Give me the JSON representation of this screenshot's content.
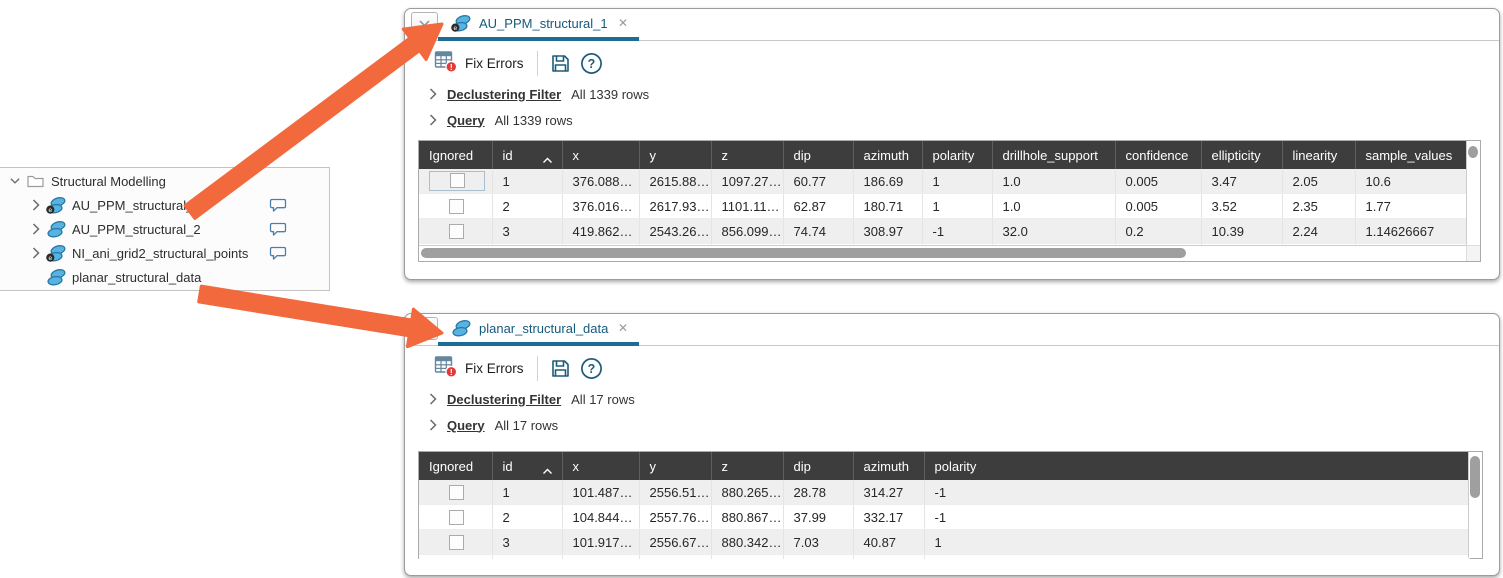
{
  "colors": {
    "tab_accent": "#1B6D93",
    "arrow_orange": "#F1693C",
    "table_header_bg": "#3D3D3D",
    "error_badge_red": "#E23B3B",
    "icon_blue": "#58B3E2",
    "icon_blue_stroke": "#2878A5"
  },
  "tree": {
    "root": {
      "label": "Structural Modelling"
    },
    "items": [
      {
        "label": "AU_PPM_structural_1",
        "chevron": true,
        "badge": true,
        "comment": true
      },
      {
        "label": "AU_PPM_structural_2",
        "chevron": true,
        "badge": false,
        "comment": true
      },
      {
        "label": "NI_ani_grid2_structural_points",
        "chevron": true,
        "badge": true,
        "comment": true
      },
      {
        "label": "planar_structural_data",
        "chevron": false,
        "badge": false,
        "comment": false
      }
    ]
  },
  "panels": [
    {
      "tab": {
        "title": "AU_PPM_structural_1",
        "badge": true,
        "close_glyph": "✕"
      },
      "toolbar": {
        "fix_errors_label": "Fix Errors"
      },
      "sections": [
        {
          "label": "Declustering Filter",
          "value": "All 1339 rows"
        },
        {
          "label": "Query",
          "value": "All 1339 rows"
        }
      ],
      "table": {
        "columns": [
          "Ignored",
          "id",
          "x",
          "y",
          "z",
          "dip",
          "azimuth",
          "polarity",
          "drillhole_support",
          "confidence",
          "ellipticity",
          "linearity",
          "sample_values"
        ],
        "sorted_column": "id",
        "rows": [
          [
            "1",
            "376.088…",
            "2615.88…",
            "1097.27…",
            "60.77",
            "186.69",
            "1",
            "1.0",
            "0.005",
            "3.47",
            "2.05",
            "10.6"
          ],
          [
            "2",
            "376.016…",
            "2617.93…",
            "1101.11…",
            "62.87",
            "180.71",
            "1",
            "1.0",
            "0.005",
            "3.52",
            "2.35",
            "1.77"
          ],
          [
            "3",
            "419.862…",
            "2543.26…",
            "856.099…",
            "74.74",
            "308.97",
            "-1",
            "32.0",
            "0.2",
            "10.39",
            "2.24",
            "1.14626667"
          ]
        ]
      }
    },
    {
      "tab": {
        "title": "planar_structural_data",
        "badge": false,
        "close_glyph": "✕"
      },
      "toolbar": {
        "fix_errors_label": "Fix Errors"
      },
      "sections": [
        {
          "label": "Declustering Filter",
          "value": "All 17 rows"
        },
        {
          "label": "Query",
          "value": "All 17 rows"
        }
      ],
      "table": {
        "columns": [
          "Ignored",
          "id",
          "x",
          "y",
          "z",
          "dip",
          "azimuth",
          "polarity"
        ],
        "sorted_column": "id",
        "rows": [
          [
            "1",
            "101.487…",
            "2556.51…",
            "880.265…",
            "28.78",
            "314.27",
            "-1"
          ],
          [
            "2",
            "104.844…",
            "2557.76…",
            "880.867…",
            "37.99",
            "332.17",
            "-1"
          ],
          [
            "3",
            "101.917…",
            "2556.67…",
            "880.342…",
            "7.03",
            "40.87",
            "1"
          ]
        ]
      }
    }
  ]
}
